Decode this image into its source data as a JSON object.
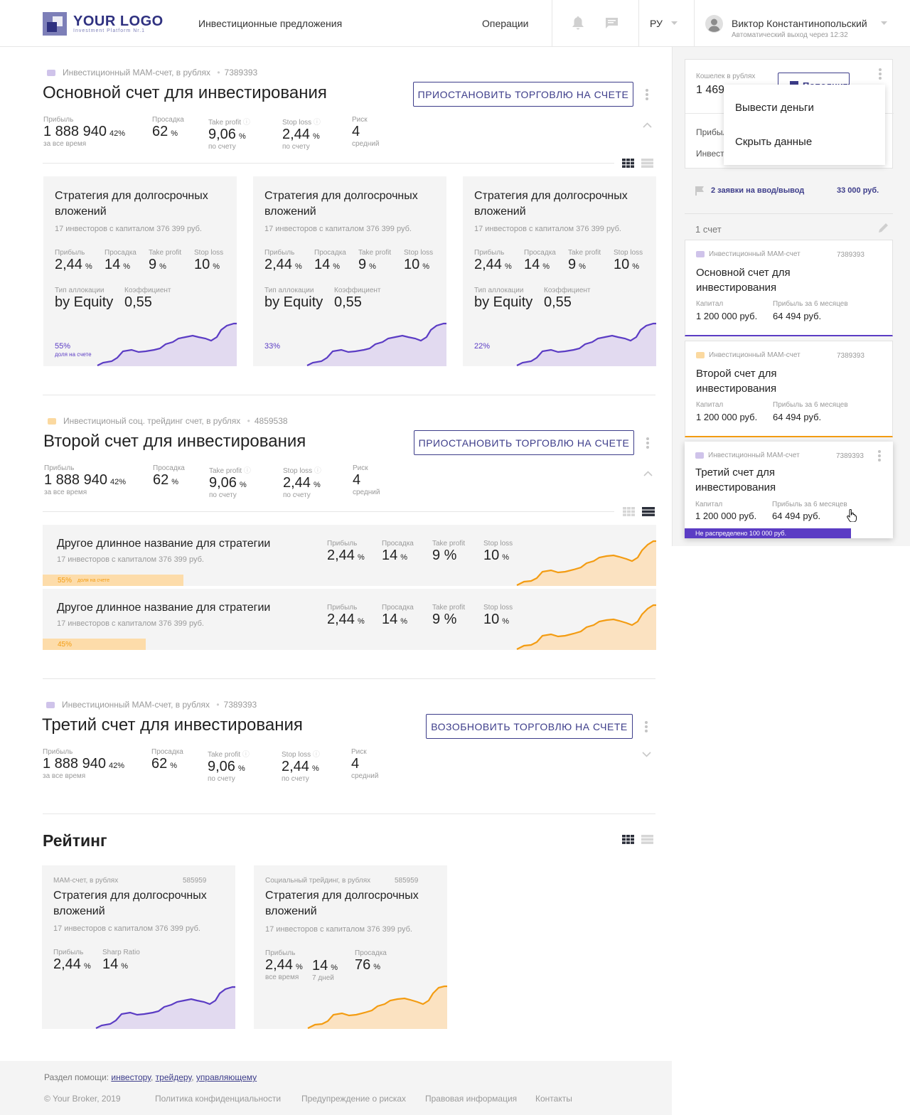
{
  "header": {
    "logo_text": "YOUR LOGO",
    "logo_sub": "Investment Platform Nr.1",
    "nav_offers": "Инвестиционные предложения",
    "nav_operations": "Операции",
    "lang": "РУ",
    "user_name": "Виктор Константинопольский",
    "user_sub": "Автоматический выход через 12:32"
  },
  "accounts": [
    {
      "type": "Инвестиционный MAM-счет,  в рублях",
      "number": "7389393",
      "title": "Основной счет для инвестирования",
      "action": "ПРИОСТАНОВИТЬ ТОРГОВЛЮ НА СЧЕТЕ",
      "stats": {
        "profit_label": "Прибыль",
        "profit": "1 888 940",
        "profit_pct": "42%",
        "profit_sub": "за все время",
        "drawdown_label": "Просадка",
        "drawdown": "62",
        "drawdown_unit": "%",
        "tp_label": "Take profit",
        "tp": "9,06",
        "tp_unit": "%",
        "tp_sub": "по счету",
        "sl_label": "Stop loss",
        "sl": "2,44",
        "sl_unit": "%",
        "sl_sub": "по счету",
        "risk_label": "Риск",
        "risk": "4",
        "risk_sub": "средний"
      }
    },
    {
      "type": "Инвестиционый соц. трейдинг счет, в рублях",
      "number": "4859538",
      "title": "Второй счет для инвестирования",
      "action": "ПРИОСТАНОВИТЬ ТОРГОВЛЮ НА СЧЕТЕ",
      "stats": {
        "profit_label": "Прибыль",
        "profit": "1 888 940",
        "profit_pct": "42%",
        "profit_sub": "за все время",
        "drawdown_label": "Просадка",
        "drawdown": "62",
        "drawdown_unit": "%",
        "tp_label": "Take profit",
        "tp": "9,06",
        "tp_unit": "%",
        "tp_sub": "по счету",
        "sl_label": "Stop loss",
        "sl": "2,44",
        "sl_unit": "%",
        "sl_sub": "по счету",
        "risk_label": "Риск",
        "risk": "4",
        "risk_sub": "средний"
      }
    },
    {
      "type": "Инвестиционный MAM-счет,  в рублях",
      "number": "7389393",
      "title": "Третий счет для инвестирования",
      "action": "ВОЗОБНОВИТЬ ТОРГОВЛЮ НА СЧЕТЕ",
      "stats": {
        "profit_label": "Прибыль",
        "profit": "1 888 940",
        "profit_pct": "42%",
        "profit_sub": "за все время",
        "drawdown_label": "Просадка",
        "drawdown": "62",
        "drawdown_unit": "%",
        "tp_label": "Take profit",
        "tp": "9,06",
        "tp_unit": "%",
        "tp_sub": "по счету",
        "sl_label": "Stop loss",
        "sl": "2,44",
        "sl_unit": "%",
        "sl_sub": "по счету",
        "risk_label": "Риск",
        "risk": "4",
        "risk_sub": "средний"
      }
    }
  ],
  "strategy_cards": [
    {
      "title": "Стратегия для долгосрочных вложений",
      "sub": "17 инвесторов с капиталом 376 399 руб.",
      "share": "55%",
      "share_label": "доля на счете"
    },
    {
      "title": "Стратегия для долгосрочных вложений",
      "sub": "17 инвесторов с капиталом 376 399 руб.",
      "share": "33%",
      "share_label": ""
    },
    {
      "title": "Стратегия для долгосрочных вложений",
      "sub": "17 инвесторов с капиталом 376 399 руб.",
      "share": "22%",
      "share_label": ""
    }
  ],
  "strategy_card_stats": {
    "profit_label": "Прибыль",
    "profit": "2,44",
    "drawdown_label": "Просадка",
    "drawdown": "14",
    "tp_label": "Take profit",
    "tp": "9",
    "sl_label": "Stop loss",
    "sl": "10",
    "unit": "%",
    "alloc_label": "Тип аллокации",
    "alloc": "by Equity",
    "coef_label": "Коэффициент",
    "coef": "0,55"
  },
  "strategy_rows": [
    {
      "title": "Другое длинное название для стратегии",
      "sub": "17 инвесторов с капиталом 376 399 руб.",
      "share": "55%",
      "share_label": "доля на счете",
      "share_fraction": 0.55
    },
    {
      "title": "Другое длинное название для стратегии",
      "sub": "17 инвесторов с капиталом 376 399 руб.",
      "share": "45%",
      "share_label": "",
      "share_fraction": 0.45
    }
  ],
  "strategy_row_stats": {
    "profit_label": "Прибыль",
    "profit": "2,44",
    "drawdown_label": "Просадка",
    "drawdown": "14",
    "tp_label": "Take profit",
    "tp": "9 %",
    "sl_label": "Stop loss",
    "sl": "10",
    "unit": "%"
  },
  "rating": {
    "title": "Рейтинг",
    "cards": [
      {
        "type": "MAM-счет, в рублях",
        "number": "585959",
        "title": "Стратегия для долгосрочных вложений",
        "sub": "17 инвесторов с капиталом 376 399 руб.",
        "s1_label": "Прибыль",
        "s1": "2,44",
        "s2_label": "Sharp Ratio",
        "s2": "14",
        "unit": "%"
      },
      {
        "type": "Социальный трейдинг, в рублях",
        "number": "585959",
        "title": "Стратегия для долгосрочных вложений",
        "sub": "17 инвесторов с капиталом 376 399 руб.",
        "s1_label": "Прибыль",
        "s1": "2,44",
        "s1_sub": "все время",
        "s2": "14",
        "s2_sub": "7 дней",
        "s3_label": "Просадка",
        "s3": "76",
        "unit": "%"
      }
    ]
  },
  "sidebar": {
    "wallet_label": "Кошелек в рублях",
    "wallet_value": "1 469",
    "topup": "Пополнить",
    "row1": "Прибыль",
    "row2": "Инвест",
    "menu_withdraw": "Вывести деньги",
    "menu_hide": "Скрыть данные",
    "requests": "2 заявки на ввод/вывод",
    "requests_amount": "33 000 руб.",
    "count": "1 счет",
    "accounts": [
      {
        "type": "Инвестиционный MAM-счет",
        "number": "7389393",
        "title": "Основной счет для инвестирования",
        "cap_label": "Капитал",
        "cap": "1 200 000 руб.",
        "profit_label": "Прибыль за 6 месяцев",
        "profit": "64 494 руб.",
        "accent": "#5b3cc4"
      },
      {
        "type": "Инвестиционный MAM-счет",
        "number": "7389393",
        "title": "Второй счет для инвестирования",
        "cap_label": "Капитал",
        "cap": "1 200 000 руб.",
        "profit_label": "Прибыль за 6 месяцев",
        "profit": "64 494 руб.",
        "accent": "#f39c12"
      },
      {
        "type": "Инвестиционный MAM-счет",
        "number": "7389393",
        "title": "Третий счет для инвестирования",
        "cap_label": "Капитал",
        "cap": "1 200 000 руб.",
        "profit_label": "Прибыль за 6 месяцев",
        "profit": "64 494 руб.",
        "accent": "#5b3cc4",
        "unallocated": "Не распределено 100 000 руб."
      }
    ]
  },
  "footer": {
    "help": "Раздел помощи:",
    "link_investor": "инвестору",
    "link_trader": "трейдеру",
    "link_manager": "управляющему",
    "copyright": "© Your Broker, 2019",
    "privacy": "Политика конфиденциальности",
    "risks": "Предупреждение о рисках",
    "legal": "Правовая информация",
    "contacts": "Контакты"
  },
  "colors": {
    "brand": "#3d3d8a",
    "purple": "#5b3cc4",
    "orange": "#f39c12"
  }
}
